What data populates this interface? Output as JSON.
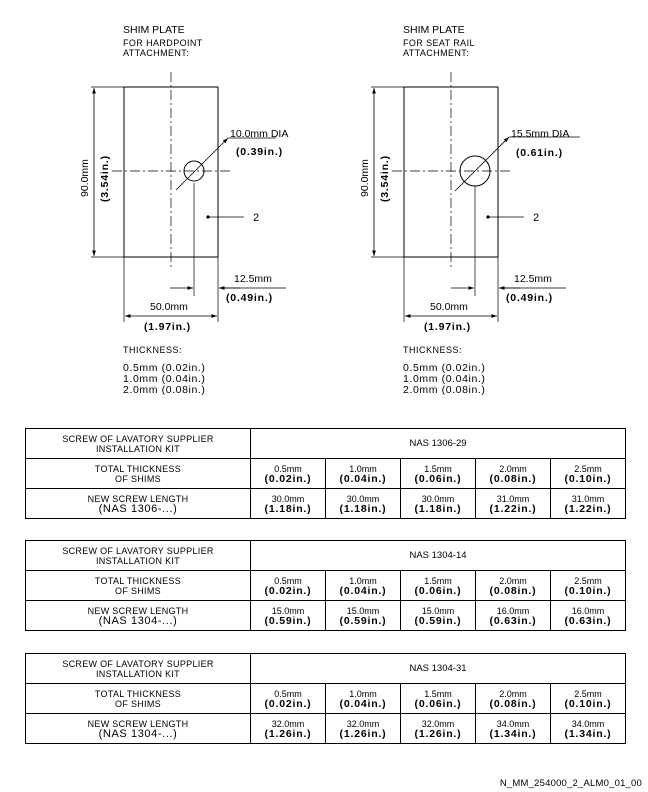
{
  "plates": [
    {
      "title": "SHIM PLATE",
      "subtitle1": "FOR HARDPOINT",
      "subtitle2": "ATTACHMENT:",
      "hole_mm": "10.0mm DIA",
      "hole_in": "(0.39in.)",
      "height_mm": "90.0mm",
      "height_in": "(3.54in.)",
      "item_ref": "2",
      "edge_mm": "12.5mm",
      "edge_in": "(0.49in.)",
      "width_mm": "50.0mm",
      "width_in": "(1.97in.)",
      "thickness_label": "THICKNESS:",
      "thicknesses": [
        "0.5mm (0.02in.)",
        "1.0mm (0.04in.)",
        "2.0mm (0.08in.)"
      ]
    },
    {
      "title": "SHIM PLATE",
      "subtitle1": "FOR SEAT RAIL",
      "subtitle2": "ATTACHMENT:",
      "hole_mm": "15.5mm DIA",
      "hole_in": "(0.61in.)",
      "height_mm": "90.0mm",
      "height_in": "(3.54in.)",
      "item_ref": "2",
      "edge_mm": "12.5mm",
      "edge_in": "(0.49in.)",
      "width_mm": "50.0mm",
      "width_in": "(1.97in.)",
      "thickness_label": "THICKNESS:",
      "thicknesses": [
        "0.5mm (0.02in.)",
        "1.0mm (0.04in.)",
        "2.0mm (0.08in.)"
      ]
    }
  ],
  "tables": [
    {
      "screw_label_1": "SCREW OF LAVATORY SUPPLIER",
      "screw_label_2": "INSTALLATION KIT",
      "screw_value": "NAS 1306-29",
      "shims_label_1": "TOTAL THICKNESS",
      "shims_label_2": "OF SHIMS",
      "shims": [
        {
          "mm": "0.5mm",
          "in": "(0.02in.)"
        },
        {
          "mm": "1.0mm",
          "in": "(0.04in.)"
        },
        {
          "mm": "1.5mm",
          "in": "(0.06in.)"
        },
        {
          "mm": "2.0mm",
          "in": "(0.08in.)"
        },
        {
          "mm": "2.5mm",
          "in": "(0.10in.)"
        }
      ],
      "length_label_1": "NEW SCREW LENGTH",
      "length_label_2": "(NAS 1306-...)",
      "lengths": [
        {
          "mm": "30.0mm",
          "in": "(1.18in.)"
        },
        {
          "mm": "30.0mm",
          "in": "(1.18in.)"
        },
        {
          "mm": "30.0mm",
          "in": "(1.18in.)"
        },
        {
          "mm": "31.0mm",
          "in": "(1.22in.)"
        },
        {
          "mm": "31.0mm",
          "in": "(1.22in.)"
        }
      ]
    },
    {
      "screw_label_1": "SCREW OF LAVATORY SUPPLIER",
      "screw_label_2": "INSTALLATION KIT",
      "screw_value": "NAS 1304-14",
      "shims_label_1": "TOTAL THICKNESS",
      "shims_label_2": "OF SHIMS",
      "shims": [
        {
          "mm": "0.5mm",
          "in": "(0.02in.)"
        },
        {
          "mm": "1.0mm",
          "in": "(0.04in.)"
        },
        {
          "mm": "1.5mm",
          "in": "(0.06in.)"
        },
        {
          "mm": "2.0mm",
          "in": "(0.08in.)"
        },
        {
          "mm": "2.5mm",
          "in": "(0.10in.)"
        }
      ],
      "length_label_1": "NEW SCREW LENGTH",
      "length_label_2": "(NAS 1304-...)",
      "lengths": [
        {
          "mm": "15.0mm",
          "in": "(0.59in.)"
        },
        {
          "mm": "15.0mm",
          "in": "(0.59in.)"
        },
        {
          "mm": "15.0mm",
          "in": "(0.59in.)"
        },
        {
          "mm": "16.0mm",
          "in": "(0.63in.)"
        },
        {
          "mm": "16.0mm",
          "in": "(0.63in.)"
        }
      ]
    },
    {
      "screw_label_1": "SCREW OF LAVATORY SUPPLIER",
      "screw_label_2": "INSTALLATION KIT",
      "screw_value": "NAS 1304-31",
      "shims_label_1": "TOTAL THICKNESS",
      "shims_label_2": "OF SHIMS",
      "shims": [
        {
          "mm": "0.5mm",
          "in": "(0.02in.)"
        },
        {
          "mm": "1.0mm",
          "in": "(0.04in.)"
        },
        {
          "mm": "1.5mm",
          "in": "(0.06in.)"
        },
        {
          "mm": "2.0mm",
          "in": "(0.08in.)"
        },
        {
          "mm": "2.5mm",
          "in": "(0.10in.)"
        }
      ],
      "length_label_1": "NEW SCREW LENGTH",
      "length_label_2": "(NAS 1304-...)",
      "lengths": [
        {
          "mm": "32.0mm",
          "in": "(1.26in.)"
        },
        {
          "mm": "32.0mm",
          "in": "(1.26in.)"
        },
        {
          "mm": "32.0mm",
          "in": "(1.26in.)"
        },
        {
          "mm": "34.0mm",
          "in": "(1.34in.)"
        },
        {
          "mm": "34.0mm",
          "in": "(1.34in.)"
        }
      ]
    }
  ],
  "footer": "N_MM_254000_2_ALM0_01_00"
}
